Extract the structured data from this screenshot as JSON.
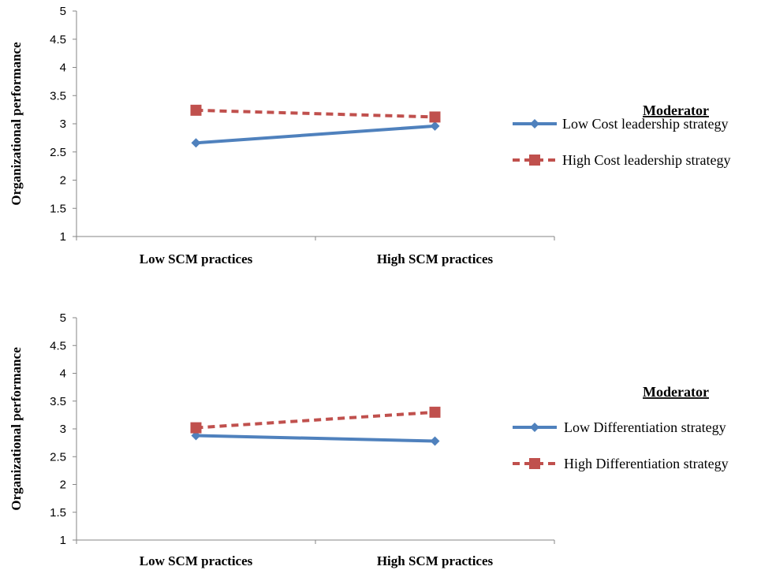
{
  "chart_data": [
    {
      "type": "line",
      "categories": [
        "Low SCM practices",
        "High SCM practices"
      ],
      "ylabel": "Organizational performance",
      "xlabel": "",
      "ylim": [
        1,
        5
      ],
      "yticks": [
        "1",
        "1.5",
        "2",
        "2.5",
        "3",
        "3.5",
        "4",
        "4.5",
        "5"
      ],
      "grid": false,
      "legend_title": "Moderator",
      "legend_position": "right",
      "series": [
        {
          "name": "Low Cost leadership strategy",
          "values": [
            2.66,
            2.96
          ],
          "color": "#4F81BD",
          "marker": "diamond",
          "dash": "solid"
        },
        {
          "name": "High Cost leadership strategy",
          "values": [
            3.24,
            3.12
          ],
          "color": "#C0504D",
          "marker": "square",
          "dash": "dashed"
        }
      ]
    },
    {
      "type": "line",
      "categories": [
        "Low SCM practices",
        "High SCM practices"
      ],
      "ylabel": "Organizational performance",
      "xlabel": "",
      "ylim": [
        1,
        5
      ],
      "yticks": [
        "1",
        "1.5",
        "2",
        "2.5",
        "3",
        "3.5",
        "4",
        "4.5",
        "5"
      ],
      "grid": false,
      "legend_title": "Moderator",
      "legend_position": "right",
      "series": [
        {
          "name": "Low Differentiation strategy",
          "values": [
            2.88,
            2.78
          ],
          "color": "#4F81BD",
          "marker": "diamond",
          "dash": "solid"
        },
        {
          "name": "High Differentiation strategy",
          "values": [
            3.02,
            3.3
          ],
          "color": "#C0504D",
          "marker": "square",
          "dash": "dashed"
        }
      ]
    }
  ]
}
